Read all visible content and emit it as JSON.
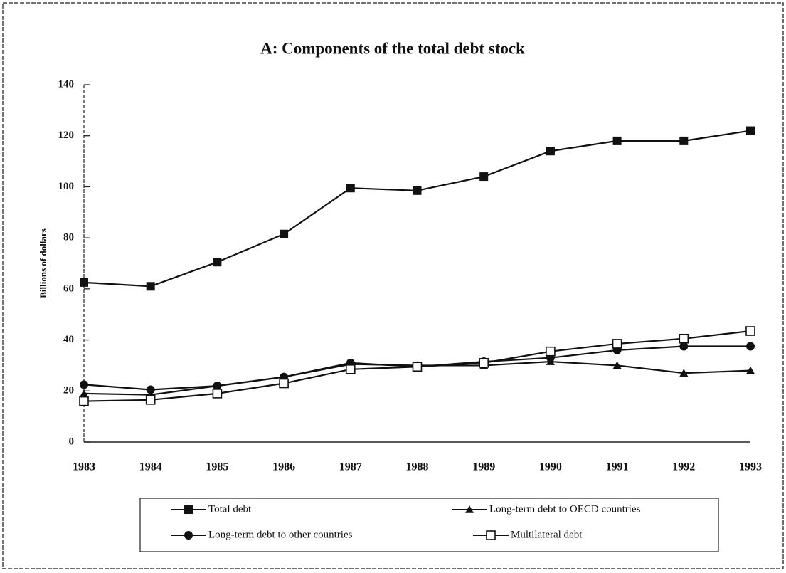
{
  "chart_data": {
    "type": "line",
    "title": "A:  Components of the total debt stock",
    "y_label": "Billions of dollars",
    "categories": [
      "1983",
      "1984",
      "1985",
      "1986",
      "1987",
      "1988",
      "1989",
      "1990",
      "1991",
      "1992",
      "1993"
    ],
    "ylim": [
      0,
      140
    ],
    "yticks": [
      0,
      20,
      40,
      60,
      80,
      100,
      120,
      140
    ],
    "series": [
      {
        "name": "Total debt",
        "color": "#111111",
        "marker": "square",
        "values": [
          62.5,
          61,
          70.5,
          81.5,
          99.5,
          98.5,
          104,
          114,
          118,
          118,
          122
        ]
      },
      {
        "name": "Long-term debt to OECD countries",
        "color": "#111111",
        "marker": "triangle",
        "values": [
          19,
          18.5,
          22,
          25.5,
          30.5,
          30,
          30,
          31.5,
          30,
          27,
          28
        ]
      },
      {
        "name": "Long-term debt to other countries",
        "color": "#111111",
        "marker": "circle",
        "values": [
          22.5,
          20.5,
          22,
          25.5,
          31,
          29.5,
          31.5,
          33,
          36,
          37.5,
          37.5
        ]
      },
      {
        "name": "Multilateral debt",
        "color": "#111111",
        "marker": "square-open",
        "values": [
          16,
          16.5,
          19,
          23,
          28.5,
          29.5,
          31,
          35.5,
          38.5,
          40.5,
          43.5
        ]
      }
    ]
  }
}
